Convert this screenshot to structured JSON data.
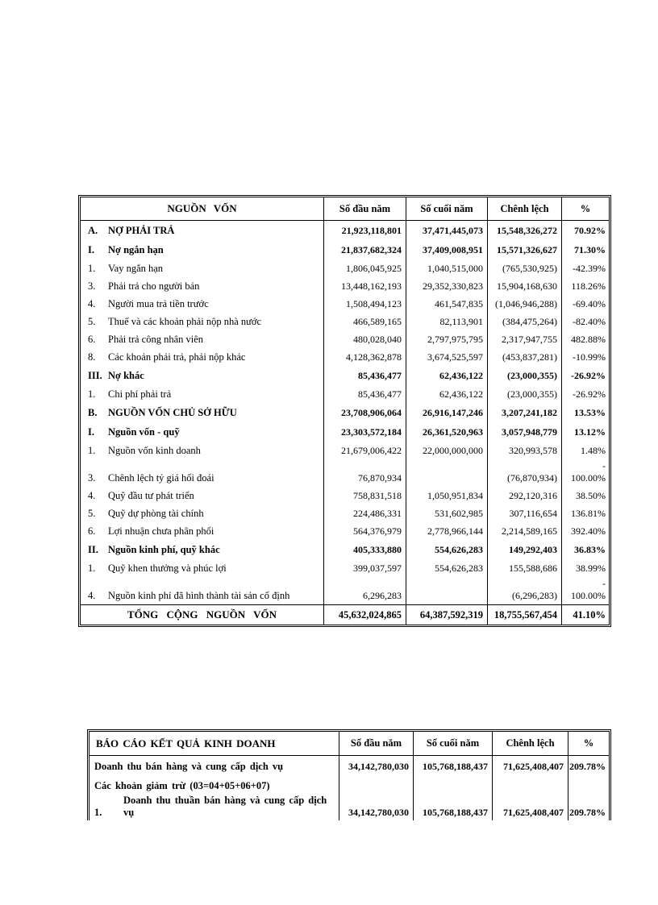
{
  "colors": {
    "text": "#000000",
    "border": "#000000",
    "background": "#ffffff"
  },
  "balance_sheet": {
    "columns": {
      "name": "NGUỒN VỐN",
      "begin": "Số đầu năm",
      "end": "Số cuối năm",
      "diff": "Chênh lệch",
      "pct": "%"
    },
    "rows": [
      {
        "no": "A.",
        "label": "NỢ PHẢI TRẢ",
        "begin": "21,923,118,801",
        "end": "37,471,445,073",
        "diff": "15,548,326,272",
        "pct": "70.92%"
      },
      {
        "no": "I.",
        "label": "Nợ ngắn hạn",
        "begin": "21,837,682,324",
        "end": "37,409,008,951",
        "diff": "15,571,326,627",
        "pct": "71.30%"
      },
      {
        "no": "1.",
        "label": "Vay ngắn hạn",
        "begin": "1,806,045,925",
        "end": "1,040,515,000",
        "diff": "(765,530,925)",
        "pct": "-42.39%"
      },
      {
        "no": "3.",
        "label": "Phải trả cho người bán",
        "begin": "13,448,162,193",
        "end": "29,352,330,823",
        "diff": "15,904,168,630",
        "pct": "118.26%"
      },
      {
        "no": "4.",
        "label": "Người mua trả tiền trước",
        "begin": "1,508,494,123",
        "end": "461,547,835",
        "diff": "(1,046,946,288)",
        "pct": "-69.40%"
      },
      {
        "no": "5.",
        "label": "Thuế và các khoản phải nộp nhà nước",
        "begin": "466,589,165",
        "end": "82,113,901",
        "diff": "(384,475,264)",
        "pct": "-82.40%"
      },
      {
        "no": "6.",
        "label": "Phải trả công nhân viên",
        "begin": "480,028,040",
        "end": "2,797,975,795",
        "diff": "2,317,947,755",
        "pct": "482.88%"
      },
      {
        "no": "8.",
        "label": "Các khoản phải trả, phải nộp khác",
        "begin": "4,128,362,878",
        "end": "3,674,525,597",
        "diff": "(453,837,281)",
        "pct": "-10.99%"
      },
      {
        "no": "III.",
        "label": "Nợ khác",
        "begin": "85,436,477",
        "end": "62,436,122",
        "diff": "(23,000,355)",
        "pct": "-26.92%"
      },
      {
        "no": "1.",
        "label": "Chi phí phải trả",
        "begin": "85,436,477",
        "end": "62,436,122",
        "diff": "(23,000,355)",
        "pct": "-26.92%"
      },
      {
        "no": "B.",
        "label": "NGUỒN VỐN CHỦ SỞ HỮU",
        "begin": "23,708,906,064",
        "end": "26,916,147,246",
        "diff": "3,207,241,182",
        "pct": "13.53%"
      },
      {
        "no": "I.",
        "label": "Nguồn vốn - quỹ",
        "begin": "23,303,572,184",
        "end": "26,361,520,963",
        "diff": "3,057,948,779",
        "pct": "13.12%"
      },
      {
        "no": "1.",
        "label": "Nguồn vốn kinh doanh",
        "begin": "21,679,006,422",
        "end": "22,000,000,000",
        "diff": "320,993,578",
        "pct": "1.48%"
      },
      {
        "no": "3.",
        "label": "Chênh lệch tỷ giá hối đoái",
        "begin": "76,870,934",
        "end": "",
        "diff": "(76,870,934)",
        "pct": "-\n100.00%"
      },
      {
        "no": "4.",
        "label": "Quỹ đầu tư phát triển",
        "begin": "758,831,518",
        "end": "1,050,951,834",
        "diff": "292,120,316",
        "pct": "38.50%"
      },
      {
        "no": "5.",
        "label": "Quỹ dự phòng tài chính",
        "begin": "224,486,331",
        "end": "531,602,985",
        "diff": "307,116,654",
        "pct": "136.81%"
      },
      {
        "no": "6.",
        "label": "Lợi nhuận chưa phân phối",
        "begin": "564,376,979",
        "end": "2,778,966,144",
        "diff": "2,214,589,165",
        "pct": "392.40%"
      },
      {
        "no": "II.",
        "label": "Nguồn kinh phí, quỹ khác",
        "begin": "405,333,880",
        "end": "554,626,283",
        "diff": "149,292,403",
        "pct": "36.83%"
      },
      {
        "no": "1.",
        "label": "Quỹ khen thưởng và phúc lợi",
        "begin": "399,037,597",
        "end": "554,626,283",
        "diff": "155,588,686",
        "pct": "38.99%"
      },
      {
        "no": "4.",
        "label": "Nguồn kinh phí đã hình thành tài sản cố định",
        "begin": "6,296,283",
        "end": "",
        "diff": "(6,296,283)",
        "pct": "-\n100.00%"
      }
    ],
    "total": {
      "label": "TỔNG CỘNG NGUỒN VỐN",
      "begin": "45,632,024,865",
      "end": "64,387,592,319",
      "diff": "18,755,567,454",
      "pct": "41.10%"
    }
  },
  "income_statement": {
    "columns": {
      "name": "BÁO CÁO KẾT QUẢ KINH DOANH",
      "begin": "Số đầu năm",
      "end": "Số cuối năm",
      "diff": "Chênh lệch",
      "pct": "%"
    },
    "rows": [
      {
        "no": "",
        "label": "Doanh thu bán hàng và cung cấp dịch vụ",
        "begin": "34,142,780,030",
        "end": "105,768,188,437",
        "diff": "71,625,408,407",
        "pct": "209.78%"
      },
      {
        "no": "",
        "label": "Các khoản giảm trừ (03=04+05+06+07)",
        "begin": "",
        "end": "",
        "diff": "",
        "pct": ""
      },
      {
        "no": "1.",
        "label_line1": "Doanh thu thuần bán hàng và cung cấp dịch",
        "label_line2": "vụ",
        "begin": "34,142,780,030",
        "end": "105,768,188,437",
        "diff": "71,625,408,407",
        "pct": "209.78%"
      }
    ]
  }
}
